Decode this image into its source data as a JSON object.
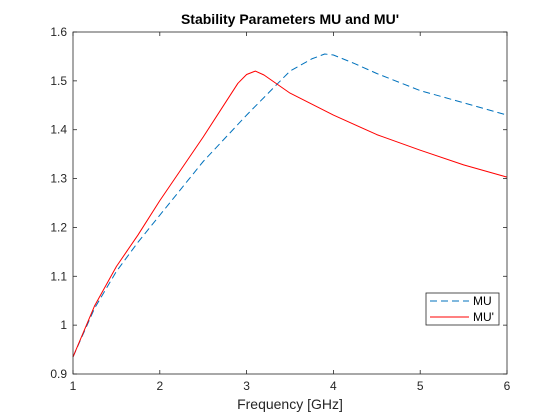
{
  "chart_data": {
    "type": "line",
    "title": "Stability Parameters MU and MU'",
    "xlabel": "Frequency [GHz]",
    "ylabel": "",
    "xlim": [
      1,
      6
    ],
    "ylim": [
      0.9,
      1.6
    ],
    "xticks": [
      "1",
      "2",
      "3",
      "4",
      "5",
      "6"
    ],
    "yticks": [
      "0.9",
      "1",
      "1.1",
      "1.2",
      "1.3",
      "1.4",
      "1.5",
      "1.6"
    ],
    "grid": false,
    "legend_position": "bottom-right",
    "series": [
      {
        "name": "MU",
        "color": "#0072BD",
        "style": "dashed",
        "x": [
          1.0,
          1.25,
          1.5,
          1.75,
          2.0,
          2.5,
          3.0,
          3.5,
          3.75,
          3.9,
          4.0,
          4.25,
          4.5,
          5.0,
          5.5,
          6.0
        ],
        "y": [
          0.935,
          1.035,
          1.11,
          1.17,
          1.225,
          1.335,
          1.43,
          1.52,
          1.545,
          1.555,
          1.553,
          1.535,
          1.515,
          1.48,
          1.455,
          1.43
        ]
      },
      {
        "name": "MU'",
        "color": "#FF0000",
        "style": "solid",
        "x": [
          1.0,
          1.25,
          1.5,
          1.75,
          2.0,
          2.5,
          2.9,
          3.0,
          3.1,
          3.2,
          3.5,
          4.0,
          4.5,
          5.0,
          5.5,
          6.0
        ],
        "y": [
          0.935,
          1.04,
          1.12,
          1.185,
          1.255,
          1.385,
          1.495,
          1.513,
          1.52,
          1.512,
          1.475,
          1.43,
          1.39,
          1.358,
          1.328,
          1.303
        ]
      }
    ]
  }
}
